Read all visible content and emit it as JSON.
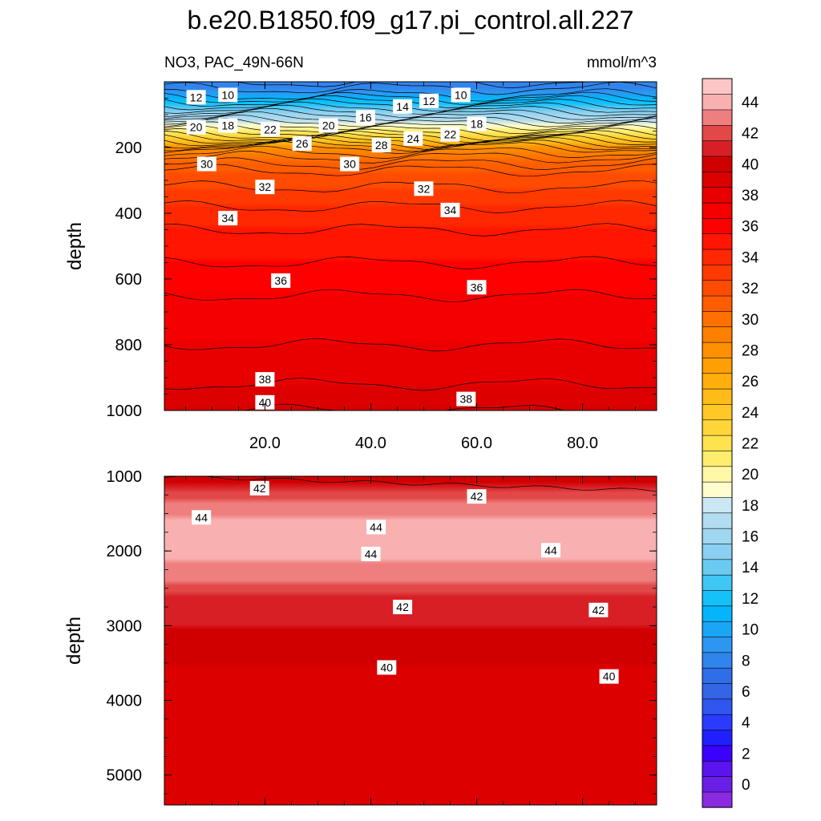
{
  "chart_data": {
    "type": "contour",
    "title": "b.e20.B1850.f09_g17.pi_control.all.227",
    "subtitle_left": "NO3, PAC_49N-66N",
    "units": "mmol/m^3",
    "xlabel": "",
    "x_tick_labels": [
      "20.0",
      "40.0",
      "60.0",
      "80.0"
    ],
    "x_ticks": [
      20,
      40,
      60,
      80
    ],
    "xlim": [
      1,
      94
    ],
    "panels": [
      {
        "name": "upper",
        "ylabel": "depth",
        "ylim": [
          0,
          1000
        ],
        "y_ticks": [
          200,
          400,
          600,
          800,
          1000
        ],
        "y_tick_labels": [
          "200",
          "400",
          "600",
          "800",
          "1000"
        ],
        "contour_labels": [
          {
            "text": "12",
            "x": 7,
            "y": 47
          },
          {
            "text": "10",
            "x": 13,
            "y": 40
          },
          {
            "text": "14",
            "x": 46,
            "y": 75
          },
          {
            "text": "12",
            "x": 51,
            "y": 58
          },
          {
            "text": "10",
            "x": 57,
            "y": 40
          },
          {
            "text": "20",
            "x": 7,
            "y": 138
          },
          {
            "text": "18",
            "x": 13,
            "y": 133
          },
          {
            "text": "22",
            "x": 21,
            "y": 145
          },
          {
            "text": "20",
            "x": 32,
            "y": 133
          },
          {
            "text": "16",
            "x": 39,
            "y": 108
          },
          {
            "text": "18",
            "x": 60,
            "y": 128
          },
          {
            "text": "26",
            "x": 27,
            "y": 188
          },
          {
            "text": "28",
            "x": 42,
            "y": 193
          },
          {
            "text": "24",
            "x": 48,
            "y": 173
          },
          {
            "text": "22",
            "x": 55,
            "y": 160
          },
          {
            "text": "30",
            "x": 9,
            "y": 250
          },
          {
            "text": "30",
            "x": 36,
            "y": 250
          },
          {
            "text": "32",
            "x": 20,
            "y": 320
          },
          {
            "text": "32",
            "x": 50,
            "y": 325
          },
          {
            "text": "34",
            "x": 13,
            "y": 415
          },
          {
            "text": "34",
            "x": 55,
            "y": 390
          },
          {
            "text": "36",
            "x": 23,
            "y": 605
          },
          {
            "text": "36",
            "x": 60,
            "y": 625
          },
          {
            "text": "38",
            "x": 20,
            "y": 905
          },
          {
            "text": "38",
            "x": 58,
            "y": 965
          },
          {
            "text": "40",
            "x": 20,
            "y": 975
          }
        ]
      },
      {
        "name": "lower",
        "ylabel": "depth",
        "ylim": [
          1000,
          5400
        ],
        "y_ticks": [
          1000,
          2000,
          3000,
          4000,
          5000
        ],
        "y_tick_labels": [
          "1000",
          "2000",
          "3000",
          "4000",
          "5000"
        ],
        "contour_labels": [
          {
            "text": "42",
            "x": 19,
            "y": 1160
          },
          {
            "text": "42",
            "x": 60,
            "y": 1270
          },
          {
            "text": "44",
            "x": 8,
            "y": 1550
          },
          {
            "text": "44",
            "x": 41,
            "y": 1680
          },
          {
            "text": "44",
            "x": 40,
            "y": 2040
          },
          {
            "text": "44",
            "x": 74,
            "y": 1990
          },
          {
            "text": "42",
            "x": 46,
            "y": 2750
          },
          {
            "text": "42",
            "x": 83,
            "y": 2790
          },
          {
            "text": "40",
            "x": 43,
            "y": 3560
          },
          {
            "text": "40",
            "x": 85,
            "y": 3680
          }
        ]
      }
    ],
    "colorbar": {
      "tick_labels": [
        "0",
        "2",
        "4",
        "6",
        "8",
        "10",
        "12",
        "14",
        "16",
        "18",
        "20",
        "22",
        "24",
        "26",
        "28",
        "30",
        "32",
        "34",
        "36",
        "38",
        "40",
        "42",
        "44"
      ],
      "levels_min": -1,
      "levels_max": 46,
      "level_step": 1,
      "colors": [
        "#8a2be2",
        "#6a1fe6",
        "#5a14ee",
        "#3b00ff",
        "#1f1fff",
        "#2a3bff",
        "#3056f0",
        "#3365e6",
        "#2f6ee8",
        "#3184ec",
        "#2d96f2",
        "#1aa6f7",
        "#05b5fb",
        "#16c1f9",
        "#3fc6f4",
        "#6bcaf2",
        "#8ad0f2",
        "#9fd6f0",
        "#b2dcef",
        "#cbe7f3",
        "#fffccd",
        "#fff8a7",
        "#ffed6d",
        "#ffe24f",
        "#ffd53a",
        "#ffc826",
        "#ffbb18",
        "#ffae0c",
        "#ff9f02",
        "#ff9000",
        "#ff8000",
        "#ff7000",
        "#ff5e00",
        "#ff4c00",
        "#ff3a00",
        "#ff2800",
        "#ff1500",
        "#ff0000",
        "#f50000",
        "#e80000",
        "#dc0000",
        "#d00000",
        "#d81f26",
        "#e24848",
        "#ef7f7f",
        "#f9b0b0",
        "#fdc6c6"
      ]
    }
  }
}
